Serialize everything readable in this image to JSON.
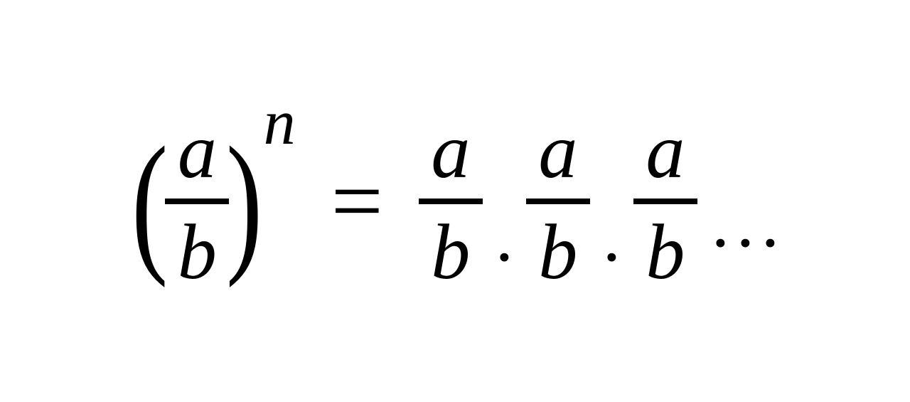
{
  "equation": {
    "type": "math-expression",
    "description": "Power of a quotient rule expansion",
    "text_color": "#000000",
    "background_color": "#ffffff",
    "font_family": "Times New Roman",
    "base_fontsize": 110,
    "exponent_fontsize": 90,
    "equals_fontsize": 130,
    "lhs": {
      "fraction": {
        "numerator": "a",
        "denominator": "b"
      },
      "exponent": "n",
      "left_paren": "(",
      "right_paren": ")"
    },
    "equals": "=",
    "rhs": {
      "terms": [
        {
          "numerator": "a",
          "denominator": "b"
        },
        {
          "numerator": "a",
          "denominator": "b"
        },
        {
          "numerator": "a",
          "denominator": "b"
        }
      ],
      "separator": ".",
      "ellipsis": "..."
    }
  }
}
